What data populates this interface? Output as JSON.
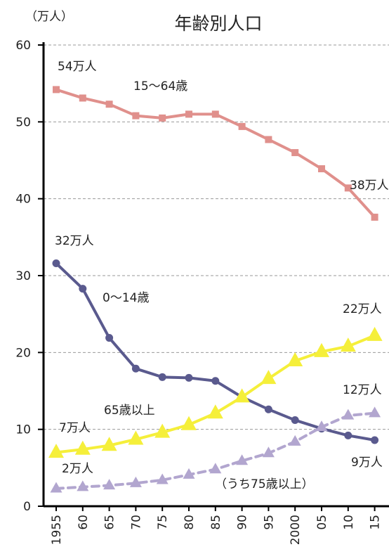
{
  "chart_data": {
    "type": "line",
    "title": "年齢別人口",
    "unit_label": "（万人）",
    "ylim": [
      0,
      60
    ],
    "y_ticks": [
      0,
      10,
      20,
      30,
      40,
      50,
      60
    ],
    "grid": true,
    "categories": [
      "1955",
      "60",
      "65",
      "70",
      "75",
      "80",
      "85",
      "90",
      "95",
      "2000",
      "05",
      "10",
      "15"
    ],
    "series": [
      {
        "name": "15〜64歳",
        "marker": "square",
        "color": "#e0908c",
        "dashed": false,
        "values": [
          54.2,
          53.1,
          52.3,
          50.8,
          50.5,
          51.0,
          51.0,
          49.4,
          47.7,
          46.0,
          43.9,
          41.4,
          37.6
        ]
      },
      {
        "name": "0〜14歳",
        "marker": "circle",
        "color": "#5a5a8e",
        "dashed": false,
        "values": [
          31.6,
          28.3,
          21.9,
          17.9,
          16.8,
          16.7,
          16.3,
          14.2,
          12.6,
          11.2,
          10.1,
          9.2,
          8.6
        ]
      },
      {
        "name": "65歳以上",
        "marker": "triangle",
        "color": "#f5ef3a",
        "dashed": false,
        "values": [
          7.0,
          7.4,
          7.9,
          8.7,
          9.6,
          10.6,
          12.1,
          14.2,
          16.6,
          18.9,
          20.1,
          20.8,
          22.2
        ]
      },
      {
        "name": "（うち75歳以上）",
        "marker": "triangle",
        "color": "#b2a6cf",
        "dashed": true,
        "values": [
          2.3,
          2.5,
          2.7,
          3.0,
          3.4,
          4.1,
          4.8,
          5.9,
          6.9,
          8.4,
          10.3,
          11.8,
          12.1
        ]
      }
    ],
    "annotations": {
      "working_start": "54万人",
      "working_end": "38万人",
      "child_start": "32万人",
      "child_end": "9万人",
      "elderly_start": "7万人",
      "elderly_end": "22万人",
      "over75_start": "2万人",
      "over75_end": "12万人"
    }
  }
}
